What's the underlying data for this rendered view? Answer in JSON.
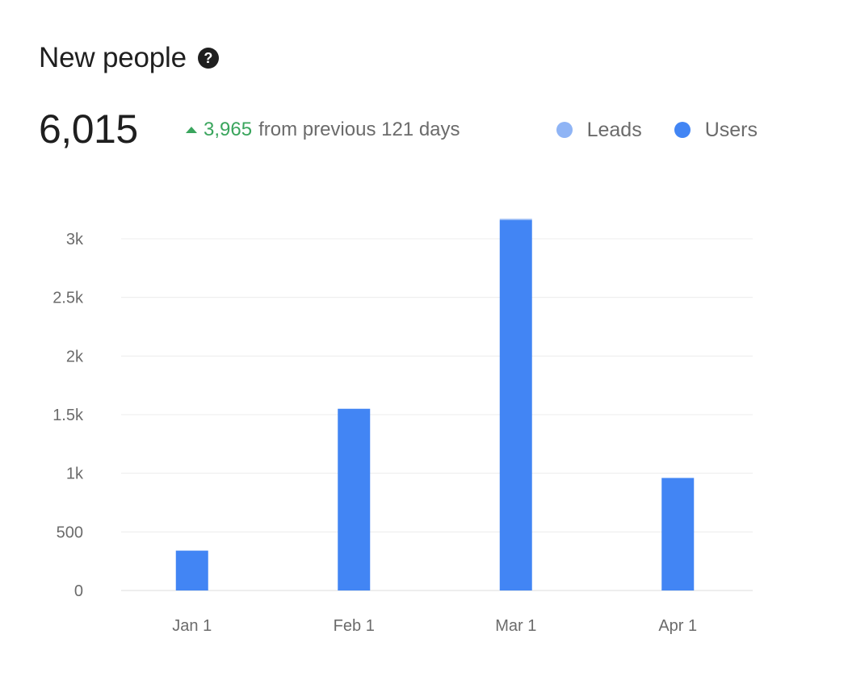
{
  "header": {
    "title": "New people",
    "help_icon": "question-circle-icon"
  },
  "summary": {
    "total": "6,015",
    "delta_value": "3,965",
    "delta_text": "from previous 121 days",
    "delta_direction": "up",
    "delta_color": "#3aa55d"
  },
  "legend": [
    {
      "label": "Leads",
      "color": "#8fb4f5"
    },
    {
      "label": "Users",
      "color": "#4285f4"
    }
  ],
  "chart_data": {
    "type": "bar",
    "stacked": true,
    "categories": [
      "Jan 1",
      "Feb 1",
      "Mar 1",
      "Apr 1"
    ],
    "series": [
      {
        "name": "Leads",
        "color": "#8fb4f5",
        "values": [
          0,
          0,
          10,
          0
        ]
      },
      {
        "name": "Users",
        "color": "#4285f4",
        "values": [
          340,
          1550,
          3160,
          960
        ]
      }
    ],
    "yticks": [
      0,
      500,
      1000,
      1500,
      2000,
      2500,
      3000
    ],
    "ytick_labels": [
      "0",
      "500",
      "1k",
      "1.5k",
      "2k",
      "2.5k",
      "3k"
    ],
    "ylim": [
      0,
      3000
    ],
    "grid": true,
    "legend_position": "top-right",
    "title": "",
    "xlabel": "",
    "ylabel": ""
  }
}
